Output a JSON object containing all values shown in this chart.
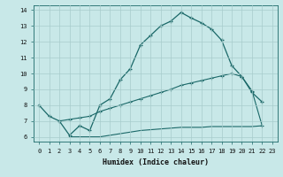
{
  "xlabel": "Humidex (Indice chaleur)",
  "bg_color": "#c8e8e8",
  "grid_color": "#a8cccc",
  "line_color": "#1a6868",
  "xlim": [
    -0.5,
    23.5
  ],
  "ylim": [
    5.7,
    14.3
  ],
  "xticks": [
    0,
    1,
    2,
    3,
    4,
    5,
    6,
    7,
    8,
    9,
    10,
    11,
    12,
    13,
    14,
    15,
    16,
    17,
    18,
    19,
    20,
    21,
    22,
    23
  ],
  "yticks": [
    6,
    7,
    8,
    9,
    10,
    11,
    12,
    13,
    14
  ],
  "line1_x": [
    0,
    1,
    2,
    3,
    4,
    5,
    6,
    7,
    8,
    9,
    10,
    11,
    12,
    13,
    14,
    15,
    16,
    17,
    18,
    19,
    20,
    21,
    22
  ],
  "line1_y": [
    8.0,
    7.3,
    7.0,
    6.1,
    6.7,
    6.4,
    8.0,
    8.4,
    9.6,
    10.3,
    11.8,
    12.4,
    13.0,
    13.3,
    13.85,
    13.5,
    13.2,
    12.8,
    12.1,
    10.5,
    9.8,
    8.8,
    8.2
  ],
  "line2_x": [
    2,
    3,
    4,
    5,
    6,
    7,
    8,
    9,
    10,
    11,
    12,
    13,
    14,
    15,
    16,
    17,
    18,
    19,
    20,
    21,
    22
  ],
  "line2_y": [
    7.0,
    7.1,
    7.2,
    7.3,
    7.6,
    7.8,
    8.0,
    8.2,
    8.4,
    8.6,
    8.8,
    9.0,
    9.25,
    9.4,
    9.55,
    9.7,
    9.85,
    10.0,
    9.8,
    8.9,
    6.7
  ],
  "line3_x": [
    3,
    4,
    5,
    6,
    7,
    8,
    9,
    10,
    11,
    12,
    13,
    14,
    15,
    16,
    17,
    18,
    19,
    20,
    21,
    22
  ],
  "line3_y": [
    6.0,
    6.0,
    6.0,
    6.0,
    6.1,
    6.2,
    6.3,
    6.4,
    6.45,
    6.5,
    6.55,
    6.6,
    6.6,
    6.6,
    6.65,
    6.65,
    6.65,
    6.65,
    6.65,
    6.7
  ]
}
